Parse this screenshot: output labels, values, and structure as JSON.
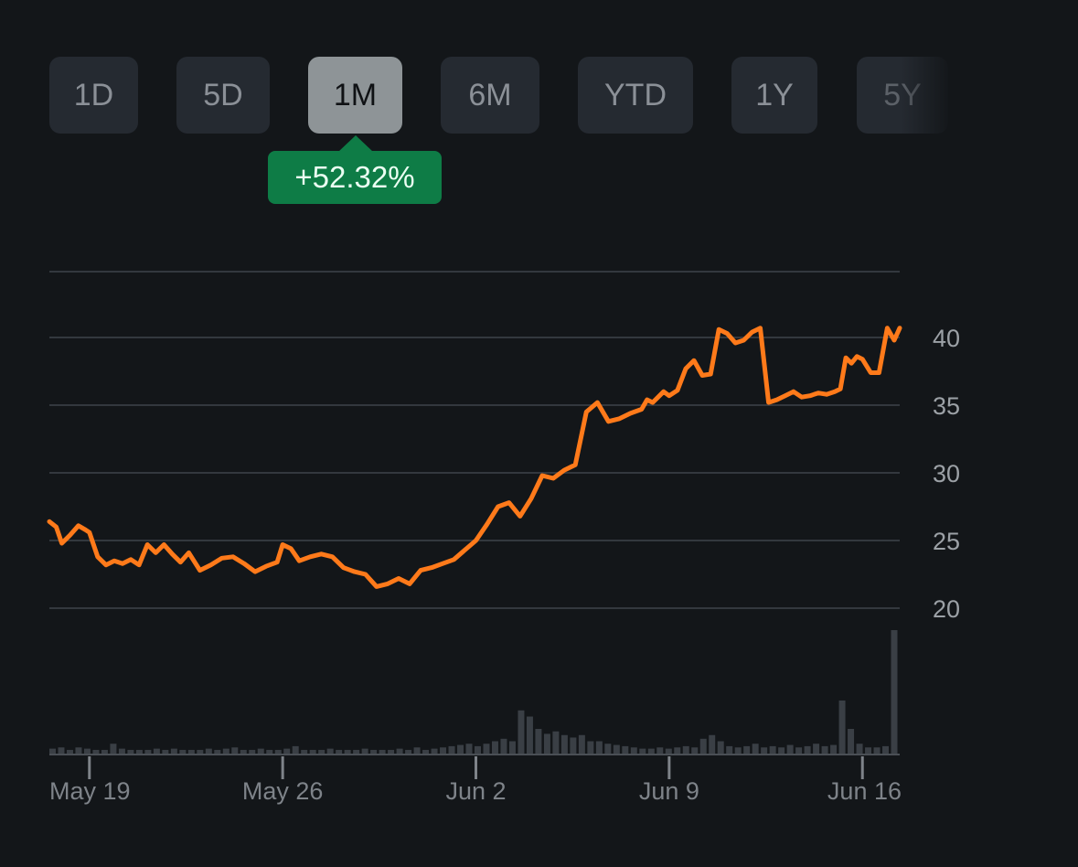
{
  "range_tabs": [
    {
      "label": "1D",
      "active": false
    },
    {
      "label": "5D",
      "active": false
    },
    {
      "label": "1M",
      "active": true
    },
    {
      "label": "6M",
      "active": false
    },
    {
      "label": "YTD",
      "active": false
    },
    {
      "label": "1Y",
      "active": false
    },
    {
      "label": "5Y",
      "active": false
    }
  ],
  "change_badge": {
    "text": "+52.32%",
    "color": "#0e7c46"
  },
  "chart_data": {
    "type": "line",
    "line_color": "#ff7a1a",
    "grid": true,
    "y_axis_side": "right",
    "ylim": [
      17.5,
      42.5
    ],
    "y_ticks": [
      20,
      25,
      30,
      35,
      40
    ],
    "x_ticks": [
      {
        "label": "May 19",
        "day": 0
      },
      {
        "label": "May 26",
        "day": 7
      },
      {
        "label": "Jun 2",
        "day": 14
      },
      {
        "label": "Jun 9",
        "day": 21
      },
      {
        "label": "Jun 16",
        "day": 28
      }
    ],
    "x_range_days": [
      -1.45,
      29.35
    ],
    "series": [
      {
        "x": [
          -1.45,
          -1.2,
          -1.0,
          -0.7,
          -0.4,
          -0.15,
          0.0,
          0.3,
          0.6,
          0.9,
          1.2,
          1.5,
          1.8,
          2.1,
          2.4,
          2.7,
          3.0,
          3.3,
          3.6,
          4.0,
          4.4,
          4.8,
          5.2,
          5.6,
          6.0,
          6.4,
          6.8,
          7.0,
          7.3,
          7.6,
          8.0,
          8.4,
          8.8,
          9.2,
          9.6,
          10.0,
          10.4,
          10.8,
          11.2,
          11.6,
          12.0,
          12.4,
          12.8,
          13.2,
          13.6,
          14.0,
          14.4,
          14.8,
          15.2,
          15.6,
          16.0,
          16.4,
          16.8,
          17.2,
          17.6,
          18.0,
          18.4,
          18.8,
          19.2,
          19.6,
          20.0,
          20.2,
          20.4,
          20.6,
          20.8,
          21.0,
          21.3,
          21.6,
          21.9,
          22.2,
          22.5,
          22.8,
          23.1,
          23.4,
          23.7,
          24.0,
          24.3,
          24.6,
          24.9,
          25.2,
          25.5,
          25.8,
          26.1,
          26.4,
          26.7,
          27.0,
          27.2,
          27.4,
          27.6,
          27.8,
          28.0,
          28.3,
          28.6,
          28.9,
          29.15,
          29.35
        ],
        "values": [
          26.6,
          26.2,
          25.0,
          25.6,
          26.3,
          26.0,
          25.8,
          24.0,
          23.4,
          23.7,
          23.5,
          23.8,
          23.4,
          24.9,
          24.3,
          24.9,
          24.2,
          23.6,
          24.3,
          23.0,
          23.4,
          23.9,
          24.0,
          23.5,
          22.9,
          23.3,
          23.6,
          24.9,
          24.6,
          23.7,
          24.0,
          24.2,
          24.0,
          23.2,
          22.9,
          22.7,
          21.8,
          22.0,
          22.4,
          22.0,
          23.0,
          23.2,
          23.5,
          23.8,
          24.5,
          25.2,
          26.4,
          27.7,
          28.0,
          27.0,
          28.3,
          30.0,
          29.8,
          30.4,
          30.8,
          34.7,
          35.4,
          34.0,
          34.2,
          34.6,
          34.9,
          35.6,
          35.4,
          35.8,
          36.2,
          35.9,
          36.3,
          37.9,
          38.5,
          37.4,
          37.5,
          40.8,
          40.5,
          39.8,
          40.0,
          40.6,
          40.9,
          35.4,
          35.6,
          35.9,
          36.2,
          35.8,
          35.9,
          36.1,
          36.0,
          36.2,
          36.4,
          38.7,
          38.3,
          38.8,
          38.6,
          37.6,
          37.6,
          40.9,
          40.0,
          40.9
        ]
      }
    ],
    "volume": {
      "color": "#3a3f45",
      "relative_values": [
        0.04,
        0.05,
        0.03,
        0.05,
        0.04,
        0.03,
        0.03,
        0.08,
        0.04,
        0.03,
        0.03,
        0.03,
        0.04,
        0.03,
        0.04,
        0.03,
        0.03,
        0.03,
        0.04,
        0.03,
        0.04,
        0.05,
        0.03,
        0.03,
        0.04,
        0.03,
        0.03,
        0.04,
        0.06,
        0.03,
        0.03,
        0.03,
        0.04,
        0.03,
        0.03,
        0.03,
        0.04,
        0.03,
        0.03,
        0.03,
        0.04,
        0.03,
        0.05,
        0.03,
        0.04,
        0.05,
        0.06,
        0.07,
        0.08,
        0.06,
        0.08,
        0.1,
        0.12,
        0.1,
        0.35,
        0.3,
        0.2,
        0.16,
        0.18,
        0.15,
        0.13,
        0.15,
        0.1,
        0.1,
        0.08,
        0.07,
        0.06,
        0.05,
        0.04,
        0.04,
        0.05,
        0.04,
        0.05,
        0.06,
        0.05,
        0.12,
        0.15,
        0.1,
        0.06,
        0.05,
        0.06,
        0.08,
        0.05,
        0.06,
        0.05,
        0.07,
        0.05,
        0.06,
        0.08,
        0.06,
        0.07,
        0.43,
        0.2,
        0.08,
        0.05,
        0.05,
        0.06,
        1.0
      ]
    }
  }
}
